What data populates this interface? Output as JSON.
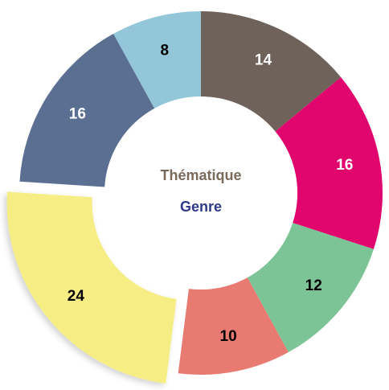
{
  "chart_data": {
    "type": "donut",
    "center_labels": [
      "Thématique",
      "Genre"
    ],
    "center_label_colors": [
      "#7a6a5c",
      "#2e3a87"
    ],
    "categories": [
      null,
      null,
      null,
      null,
      null,
      null,
      null
    ],
    "values": [
      14,
      16,
      12,
      10,
      24,
      16,
      8
    ],
    "colors": [
      "#6e625a",
      "#e0066e",
      "#7cc396",
      "#e97a72",
      "#f7ed85",
      "#5a6f92",
      "#92c6d8"
    ],
    "exploded": [
      4
    ]
  }
}
